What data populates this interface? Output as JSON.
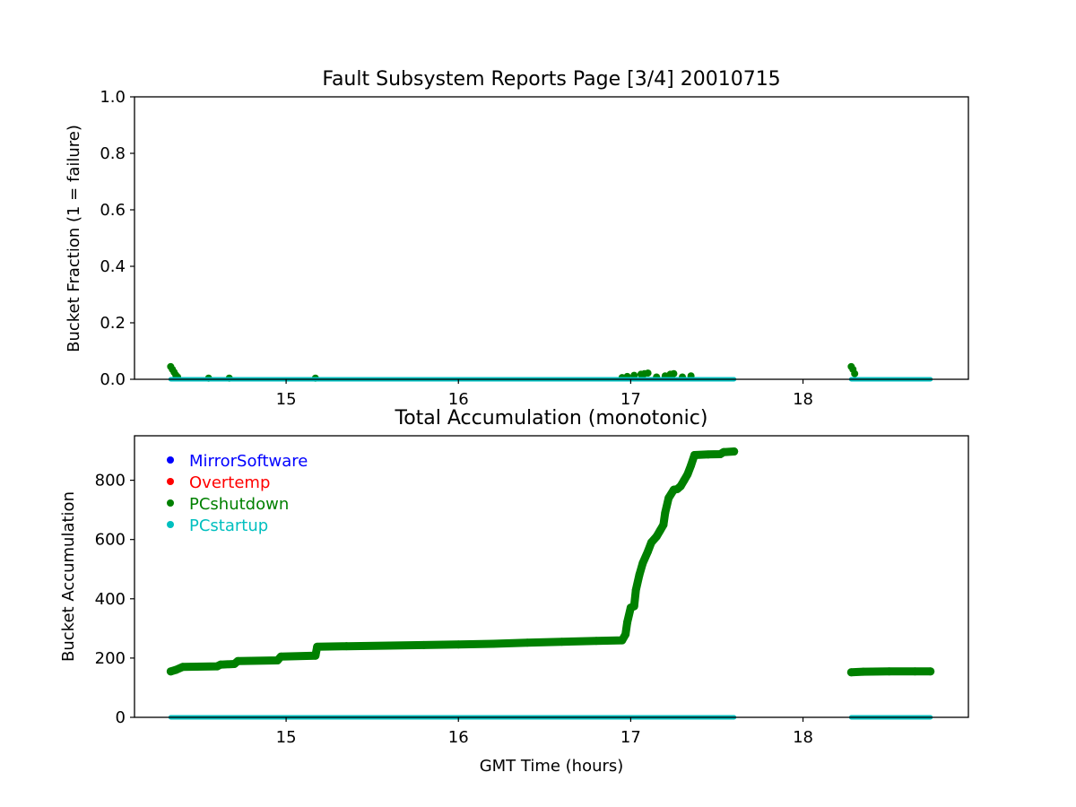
{
  "chart_data": [
    {
      "type": "scatter",
      "title": "Fault Subsystem Reports Page [3/4] 20010715",
      "xlabel": "",
      "ylabel": "Bucket Fraction (1 = failure)",
      "xlim": [
        14.12,
        18.96
      ],
      "ylim": [
        0,
        1.0
      ],
      "x_ticks": [
        15,
        16,
        17,
        18
      ],
      "y_ticks": [
        0.0,
        0.2,
        0.4,
        0.6,
        0.8,
        1.0
      ],
      "y_tick_labels": [
        "0.0",
        "0.2",
        "0.4",
        "0.6",
        "0.8",
        "1.0"
      ],
      "grid": false,
      "series": [
        {
          "name": "PCshutdown",
          "color": "#008000",
          "x": [
            14.33,
            14.34,
            14.35,
            14.36,
            14.37,
            14.55,
            14.67,
            15.17,
            16.95,
            16.98,
            17.02,
            17.06,
            17.08,
            17.1,
            17.15,
            17.2,
            17.23,
            17.25,
            17.3,
            17.35,
            18.28,
            18.29,
            18.3
          ],
          "y": [
            0.045,
            0.035,
            0.025,
            0.015,
            0.008,
            0.004,
            0.004,
            0.004,
            0.006,
            0.01,
            0.014,
            0.018,
            0.02,
            0.022,
            0.008,
            0.012,
            0.018,
            0.02,
            0.008,
            0.012,
            0.045,
            0.035,
            0.02
          ]
        },
        {
          "name": "PCstartup",
          "color": "#00bfbf",
          "segments": [
            [
              14.33,
              17.6
            ],
            [
              18.28,
              18.74
            ]
          ],
          "value": 0
        }
      ]
    },
    {
      "type": "scatter",
      "title": "Total Accumulation (monotonic)",
      "xlabel": "GMT Time (hours)",
      "ylabel": "Bucket Accumulation",
      "xlim": [
        14.12,
        18.96
      ],
      "ylim": [
        0,
        950
      ],
      "x_ticks": [
        15,
        16,
        17,
        18
      ],
      "y_ticks": [
        0,
        200,
        400,
        600,
        800
      ],
      "grid": false,
      "legend": "upper-left",
      "legend_entries": [
        {
          "name": "MirrorSoftware",
          "color": "#0000ff"
        },
        {
          "name": "Overtemp",
          "color": "#ff0000"
        },
        {
          "name": "PCshutdown",
          "color": "#008000"
        },
        {
          "name": "PCstartup",
          "color": "#00bfbf"
        }
      ],
      "series": [
        {
          "name": "PCshutdown",
          "color": "#008000",
          "segments": [
            {
              "x": [
                14.33,
                14.36,
                14.4,
                14.6,
                14.62,
                14.7,
                14.72,
                14.95,
                14.97,
                15.17,
                15.18,
                15.35,
                15.6,
                15.8,
                16.0,
                16.2,
                16.4,
                16.6,
                16.8,
                16.95,
                16.97,
                16.98,
                17.0,
                17.02,
                17.03,
                17.05,
                17.07,
                17.1,
                17.12,
                17.15,
                17.17,
                17.19,
                17.2,
                17.22,
                17.25,
                17.27,
                17.29,
                17.31,
                17.33,
                17.35,
                17.37,
                17.45,
                17.52,
                17.54,
                17.6
              ],
              "y": [
                155,
                160,
                170,
                172,
                178,
                180,
                190,
                192,
                205,
                208,
                238,
                240,
                242,
                244,
                246,
                248,
                252,
                255,
                258,
                260,
                280,
                320,
                370,
                375,
                430,
                480,
                520,
                560,
                590,
                610,
                630,
                650,
                690,
                740,
                768,
                770,
                780,
                800,
                820,
                850,
                885,
                887,
                888,
                895,
                897
              ]
            },
            {
              "x": [
                18.28,
                18.35,
                18.5,
                18.65,
                18.74
              ],
              "y": [
                152,
                154,
                155,
                155,
                155
              ]
            }
          ]
        },
        {
          "name": "PCstartup",
          "color": "#00bfbf",
          "segments": [
            [
              14.33,
              17.6
            ],
            [
              18.28,
              18.74
            ]
          ],
          "value": 0
        }
      ]
    }
  ]
}
